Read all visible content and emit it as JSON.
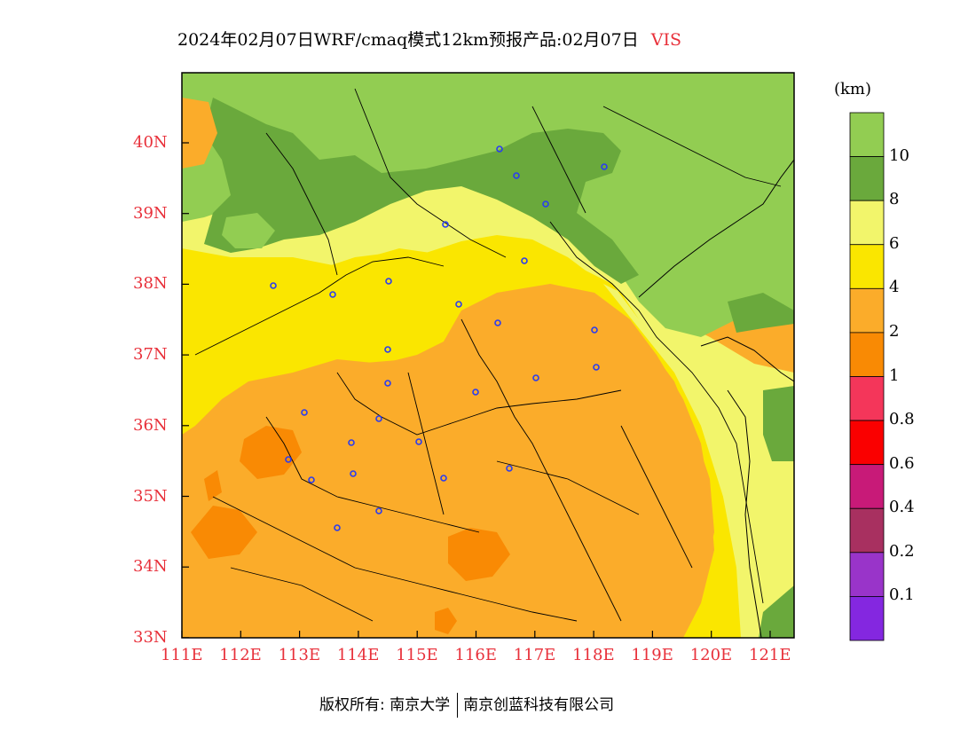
{
  "title": {
    "main": "2024年02月07日WRF/cmaq模式12km预报产品:02月07日",
    "variable": "VIS"
  },
  "axes": {
    "lat_ticks": [
      "40N",
      "39N",
      "38N",
      "37N",
      "36N",
      "35N",
      "34N",
      "33N"
    ],
    "lon_ticks": [
      "111E",
      "112E",
      "113E",
      "114E",
      "115E",
      "116E",
      "117E",
      "118E",
      "119E",
      "120E",
      "121E"
    ],
    "tick_color": "#e8303a"
  },
  "colorbar": {
    "unit": "(km)",
    "labels": [
      "10",
      "8",
      "6",
      "4",
      "2",
      "1",
      "0.8",
      "0.6",
      "0.4",
      "0.2",
      "0.1"
    ],
    "colors": [
      "#92cd52",
      "#6aa93c",
      "#f2f56b",
      "#fae600",
      "#fbac2a",
      "#f98a04",
      "#f4365a",
      "#fa0000",
      "#c81a78",
      "#a83060",
      "#9934c9",
      "#8427e0"
    ]
  },
  "footer": {
    "left": "版权所有: 南京大学",
    "right": "南京创蓝科技有限公司"
  }
}
